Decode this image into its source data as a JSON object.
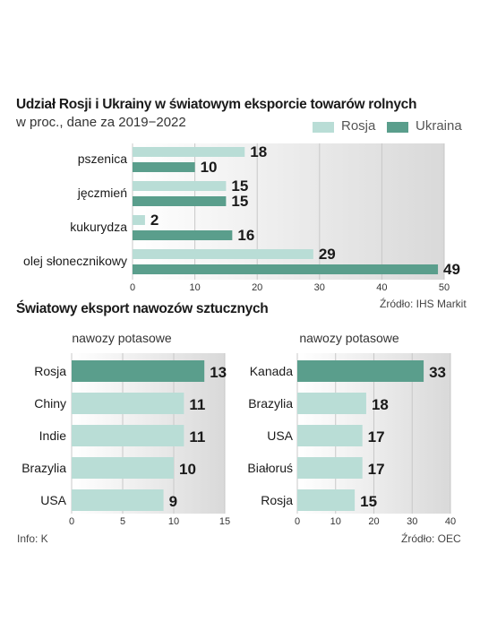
{
  "colors": {
    "rosja": "#b9ddd6",
    "ukraina": "#5a9e8c",
    "bar": "#b9ddd6",
    "highlight": "#5a9e8c"
  },
  "top": {
    "title": "Udział Rosji i Ukrainy w światowym eksporcie towarów rolnych",
    "subtitle": "w proc., dane za 2019−2022",
    "source": "Źródło: IHS Markit"
  },
  "bottom": {
    "title": "Światowy eksport nawozów sztucznych",
    "info": "Info: K",
    "source": "Źródło: OEC"
  },
  "chart_data": [
    {
      "type": "bar",
      "orientation": "horizontal",
      "title": "Udział Rosji i Ukrainy w światowym eksporcie towarów rolnych",
      "subtitle": "w proc., dane za 2019−2022",
      "categories": [
        "pszenica",
        "jęczmień",
        "kukurydza",
        "olej słonecznikowy"
      ],
      "series": [
        {
          "name": "Rosja",
          "values": [
            18,
            15,
            2,
            29
          ]
        },
        {
          "name": "Ukraina",
          "values": [
            10,
            15,
            16,
            49
          ]
        }
      ],
      "xlim": [
        0,
        50
      ],
      "xticks": [
        0,
        10,
        20,
        30,
        40,
        50
      ],
      "legend": "top-right",
      "grid": true
    },
    {
      "type": "bar",
      "orientation": "horizontal",
      "title": "nawozy potasowe",
      "categories": [
        "Rosja",
        "Chiny",
        "Indie",
        "Brazylia",
        "USA"
      ],
      "values": [
        13,
        11,
        11,
        10,
        9
      ],
      "highlight": "Rosja",
      "xlim": [
        0,
        15
      ],
      "xticks": [
        0,
        5,
        10,
        15
      ],
      "grid": true
    },
    {
      "type": "bar",
      "orientation": "horizontal",
      "title": "nawozy potasowe",
      "categories": [
        "Kanada",
        "Brazylia",
        "USA",
        "Białoruś",
        "Rosja"
      ],
      "values": [
        33,
        18,
        17,
        17,
        15
      ],
      "highlight": "Kanada",
      "xlim": [
        0,
        40
      ],
      "xticks": [
        0,
        10,
        20,
        30,
        40
      ],
      "grid": true
    }
  ]
}
